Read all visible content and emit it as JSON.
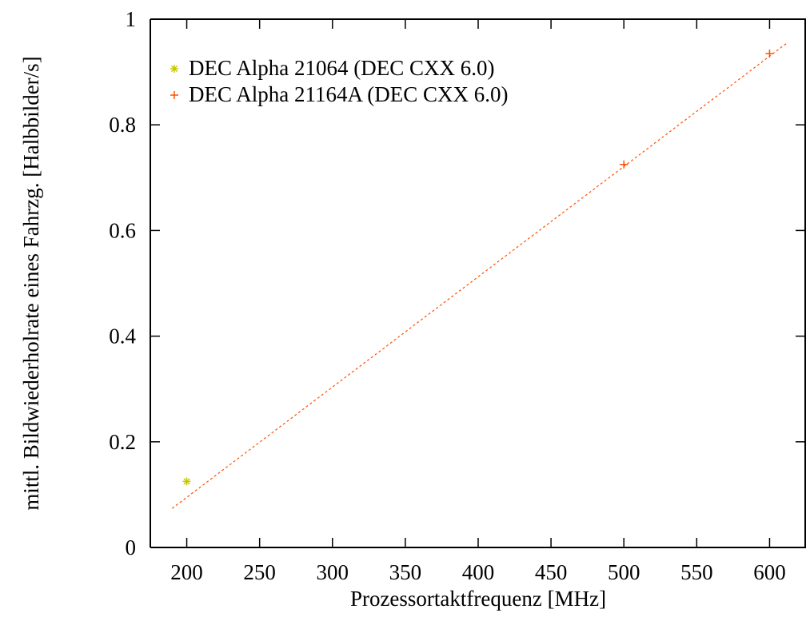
{
  "chart_data": {
    "type": "scatter",
    "title": "",
    "xlabel": "Prozessortaktfrequenz [MHz]",
    "ylabel": "mittl. Bildwiederholrate eines Fahrzg. [Halbbilder/s]",
    "xlim": [
      175,
      625
    ],
    "ylim": [
      0,
      1
    ],
    "x_ticks": [
      200,
      250,
      300,
      350,
      400,
      450,
      500,
      550,
      600
    ],
    "x_tick_labels": [
      "200",
      "250",
      "300",
      "350",
      "400",
      "450",
      "500",
      "550",
      "600"
    ],
    "y_ticks": [
      0,
      0.2,
      0.4,
      0.6,
      0.8,
      1
    ],
    "y_tick_labels": [
      "0",
      "0.2",
      "0.4",
      "0.6",
      "0.8",
      "1"
    ],
    "grid": false,
    "legend_position": "top-left",
    "series": [
      {
        "name": "DEC Alpha 21064 (DEC CXX 6.0)",
        "marker": "asterisk",
        "color": "#c8c800",
        "points": [
          {
            "x": 200,
            "y": 0.125
          }
        ]
      },
      {
        "name": "DEC Alpha 21164A (DEC CXX 6.0)",
        "marker": "plus",
        "color": "#ff5000",
        "points": [
          {
            "x": 500,
            "y": 0.725
          },
          {
            "x": 600,
            "y": 0.935
          }
        ]
      }
    ],
    "fit_line": {
      "style": "dashed",
      "color": "#ff5000",
      "x": [
        190,
        612
      ],
      "y": [
        0.074,
        0.955
      ]
    }
  }
}
